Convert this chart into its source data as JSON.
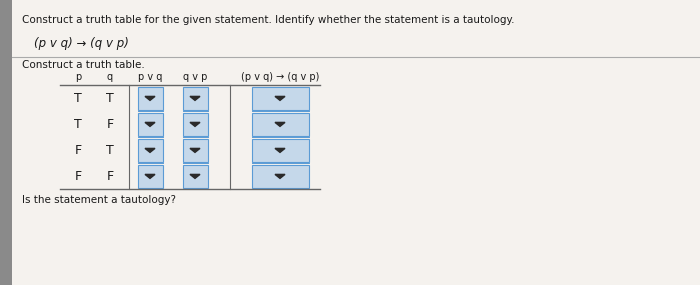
{
  "bg_color": "#e8e0d8",
  "white_bg": "#f5f2ee",
  "text_color": "#1a1a1a",
  "title_line1": "Construct a truth table for the given statement. Identify whether the statement is a tautology.",
  "formula": "(p v q) → (q v p)",
  "subtitle": "Construct a truth table.",
  "footer": "Is the statement a tautology?",
  "col_header_p": "p",
  "col_header_q": "q",
  "col_header_pvq": "p v q",
  "col_header_qvp": "q v p",
  "col_header_impl": "(p v q) → (q v p)",
  "rows": [
    [
      "T",
      "T"
    ],
    [
      "T",
      "F"
    ],
    [
      "F",
      "T"
    ],
    [
      "F",
      "F"
    ]
  ],
  "dropdown_color": "#c5d8ea",
  "dropdown_border": "#5b9bd5",
  "arrow_color": "#2a2a2a",
  "left_strip_color": "#8a8a8a",
  "separator_color": "#666666"
}
